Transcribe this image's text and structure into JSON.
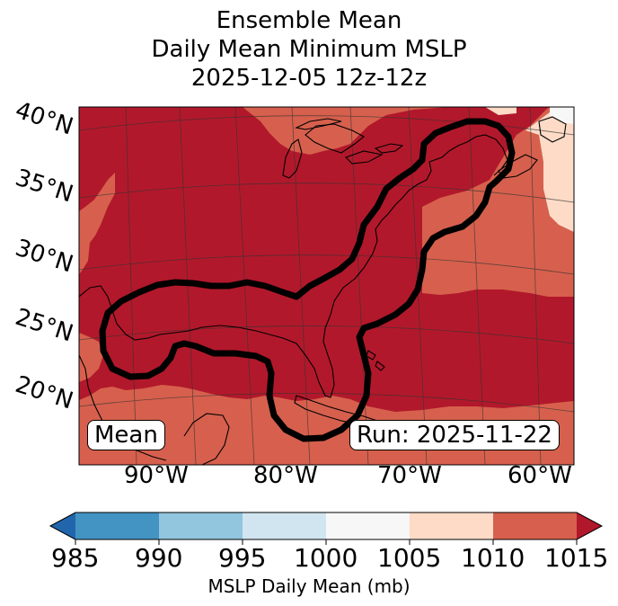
{
  "title": {
    "line1": "Ensemble Mean",
    "line2": "Daily Mean Minimum MSLP",
    "line3": "2025-12-05 12z-12z"
  },
  "map": {
    "lat_labels": [
      "40°N",
      "35°N",
      "30°N",
      "25°N",
      "20°N"
    ],
    "lon_labels": [
      "90°W",
      "80°W",
      "70°W",
      "60°W"
    ],
    "mean_label": "Mean",
    "run_label": "Run: 2025-11-22",
    "colors": {
      "c1005_1010": "#fddbc7",
      "c1010_1015": "#d6604d",
      "c1015_plus": "#b2182b",
      "c1000_1005": "#f7f7f7"
    }
  },
  "colorbar": {
    "title": "MSLP Daily Mean (mb)",
    "ticks": [
      "985",
      "990",
      "995",
      "1000",
      "1005",
      "1010",
      "1015"
    ],
    "bins": [
      {
        "range": "985-990",
        "color": "#4393c3"
      },
      {
        "range": "990-995",
        "color": "#92c5de"
      },
      {
        "range": "995-1000",
        "color": "#d1e5f0"
      },
      {
        "range": "1000-1005",
        "color": "#f7f7f7"
      },
      {
        "range": "1005-1010",
        "color": "#fddbc7"
      },
      {
        "range": "1010-1015",
        "color": "#d6604d"
      }
    ],
    "under_color": "#2166ac",
    "over_color": "#b2182b"
  }
}
